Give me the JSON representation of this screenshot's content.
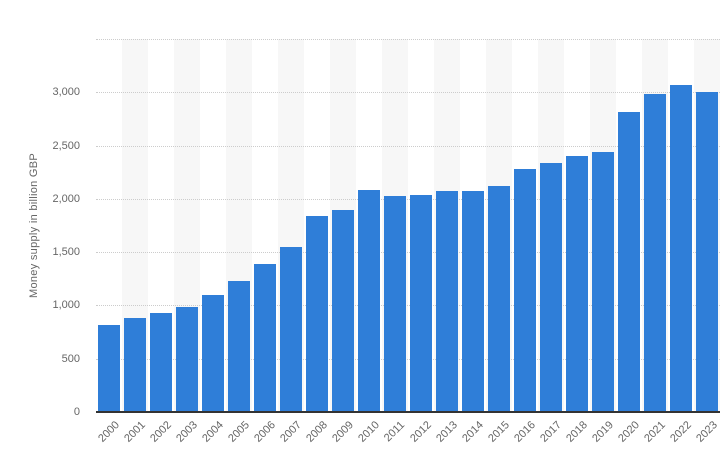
{
  "chart_data": {
    "type": "bar",
    "title": "",
    "ylabel": "Money supply in billion GBP",
    "xlabel": "",
    "unit": "billion GBP",
    "categories": [
      "2000",
      "2001",
      "2002",
      "2003",
      "2004",
      "2005",
      "2006",
      "2007",
      "2008",
      "2009",
      "2010",
      "2011",
      "2012",
      "2013",
      "2014",
      "2015",
      "2016",
      "2017",
      "2018",
      "2019",
      "2020",
      "2021",
      "2022",
      "2023"
    ],
    "values": [
      815,
      880,
      925,
      985,
      1095,
      1225,
      1390,
      1545,
      1835,
      1900,
      2080,
      2030,
      2035,
      2070,
      2070,
      2125,
      2280,
      2340,
      2400,
      2440,
      2815,
      2985,
      3065,
      3005
    ],
    "ylim": [
      0,
      3500
    ],
    "y_ticks": [
      {
        "value": 0,
        "label": "0"
      },
      {
        "value": 500,
        "label": "500"
      },
      {
        "value": 1000,
        "label": "1,000"
      },
      {
        "value": 1500,
        "label": "1,500"
      },
      {
        "value": 2000,
        "label": "2,000"
      },
      {
        "value": 2500,
        "label": "2,500"
      },
      {
        "value": 3000,
        "label": "3,000"
      },
      {
        "value": 3500,
        "label": ""
      }
    ],
    "grid": "horizontal-dotted",
    "legend": "none",
    "plot_bands": "alternating-category-stripes",
    "colors": {
      "bar": "#2f7ed8",
      "band": "#f7f7f7",
      "gridline": "#cccccc",
      "axis_line": "#333333",
      "label": "#666666",
      "background": "#ffffff"
    }
  }
}
